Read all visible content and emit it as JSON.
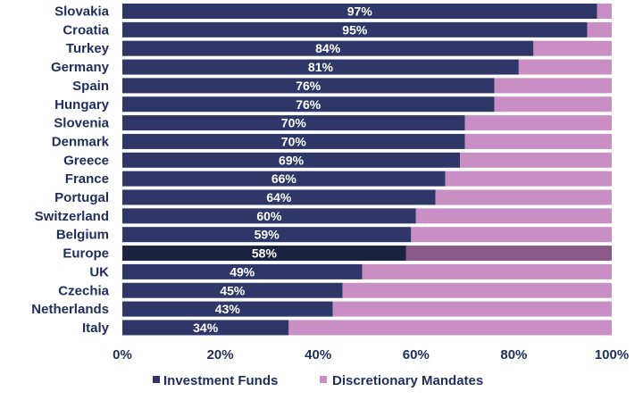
{
  "chart_data": {
    "type": "bar",
    "orientation": "horizontal",
    "stacked": true,
    "percent_stacked": true,
    "title": "",
    "xlabel": "",
    "ylabel": "",
    "xlim": [
      0,
      100
    ],
    "x_ticks": [
      "0%",
      "20%",
      "40%",
      "60%",
      "80%",
      "100%"
    ],
    "categories": [
      "Slovakia",
      "Croatia",
      "Turkey",
      "Germany",
      "Spain",
      "Hungary",
      "Slovenia",
      "Denmark",
      "Greece",
      "France",
      "Portugal",
      "Switzerland",
      "Belgium",
      "Europe",
      "UK",
      "Czechia",
      "Netherlands",
      "Italy"
    ],
    "series": [
      {
        "name": "Investment Funds",
        "color": "#2e3768",
        "highlight_color": "#1c2340",
        "values": [
          97,
          95,
          84,
          81,
          76,
          76,
          70,
          70,
          69,
          66,
          64,
          60,
          59,
          58,
          49,
          45,
          43,
          34
        ]
      },
      {
        "name": "Discretionary Mandates",
        "color": "#c98fc4",
        "highlight_color": "#8c5a88",
        "values": [
          3,
          5,
          16,
          19,
          24,
          24,
          30,
          30,
          31,
          34,
          36,
          40,
          41,
          42,
          51,
          55,
          57,
          66
        ]
      }
    ],
    "bar_value_labels": [
      "97%",
      "95%",
      "84%",
      "81%",
      "76%",
      "76%",
      "70%",
      "70%",
      "69%",
      "66%",
      "64%",
      "60%",
      "59%",
      "58%",
      "49%",
      "45%",
      "43%",
      "34%"
    ],
    "highlighted_category": "Europe",
    "legend_position": "bottom",
    "grid": false
  }
}
